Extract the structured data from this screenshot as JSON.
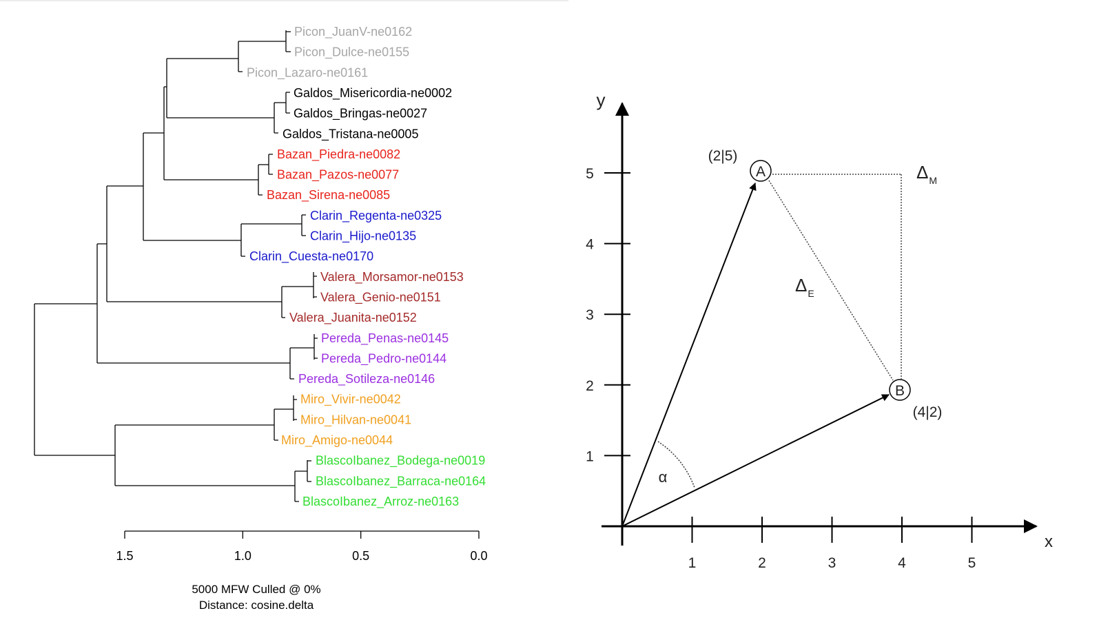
{
  "dendrogram": {
    "leaves": [
      {
        "label": "Picon_JuanV-ne0162",
        "color": "#a6a6a6"
      },
      {
        "label": "Picon_Dulce-ne0155",
        "color": "#a6a6a6"
      },
      {
        "label": "Picon_Lazaro-ne0161",
        "color": "#a6a6a6"
      },
      {
        "label": "Galdos_Misericordia-ne0002",
        "color": "#000000"
      },
      {
        "label": "Galdos_Bringas-ne0027",
        "color": "#000000"
      },
      {
        "label": "Galdos_Tristana-ne0005",
        "color": "#000000"
      },
      {
        "label": "Bazan_Piedra-ne0082",
        "color": "#e8241c"
      },
      {
        "label": "Bazan_Pazos-ne0077",
        "color": "#e8241c"
      },
      {
        "label": "Bazan_Sirena-ne0085",
        "color": "#e8241c"
      },
      {
        "label": "Clarin_Regenta-ne0325",
        "color": "#1a1acc"
      },
      {
        "label": "Clarin_Hijo-ne0135",
        "color": "#1a1acc"
      },
      {
        "label": "Clarin_Cuesta-ne0170",
        "color": "#1a1acc"
      },
      {
        "label": "Valera_Morsamor-ne0153",
        "color": "#a52a2a"
      },
      {
        "label": "Valera_Genio-ne0151",
        "color": "#a52a2a"
      },
      {
        "label": "Valera_Juanita-ne0152",
        "color": "#a52a2a"
      },
      {
        "label": "Pereda_Penas-ne0145",
        "color": "#9b30e0"
      },
      {
        "label": "Pereda_Pedro-ne0144",
        "color": "#9b30e0"
      },
      {
        "label": "Pereda_Sotileza-ne0146",
        "color": "#9b30e0"
      },
      {
        "label": "Miro_Vivir-ne0042",
        "color": "#f0a020"
      },
      {
        "label": "Miro_Hilvan-ne0041",
        "color": "#f0a020"
      },
      {
        "label": "Miro_Amigo-ne0044",
        "color": "#f0a020"
      },
      {
        "label": "BlascoIbanez_Bodega-ne0019",
        "color": "#33dd33"
      },
      {
        "label": "BlascoIbanez_Barraca-ne0164",
        "color": "#33dd33"
      },
      {
        "label": "BlascoIbanez_Arroz-ne0163",
        "color": "#33dd33"
      }
    ],
    "axis": {
      "ticks": [
        "1.5",
        "1.0",
        "0.5",
        "0.0"
      ],
      "range": [
        1.5,
        0.0
      ]
    },
    "caption_line1": "5000 MFW  Culled @ 0%",
    "caption_line2": "Distance: cosine.delta"
  },
  "vector_diagram": {
    "x_axis_label": "x",
    "y_axis_label": "y",
    "x_ticks": [
      "1",
      "2",
      "3",
      "4",
      "5"
    ],
    "y_ticks": [
      "1",
      "2",
      "3",
      "4",
      "5"
    ],
    "point_a": {
      "name": "A",
      "coord_label": "(2|5)",
      "x": 2,
      "y": 5
    },
    "point_b": {
      "name": "B",
      "coord_label": "(4|2)",
      "x": 4,
      "y": 2
    },
    "delta_m": {
      "symbol": "Δ",
      "subscript": "M"
    },
    "delta_e": {
      "symbol": "Δ",
      "subscript": "E"
    },
    "angle_label": "α"
  }
}
